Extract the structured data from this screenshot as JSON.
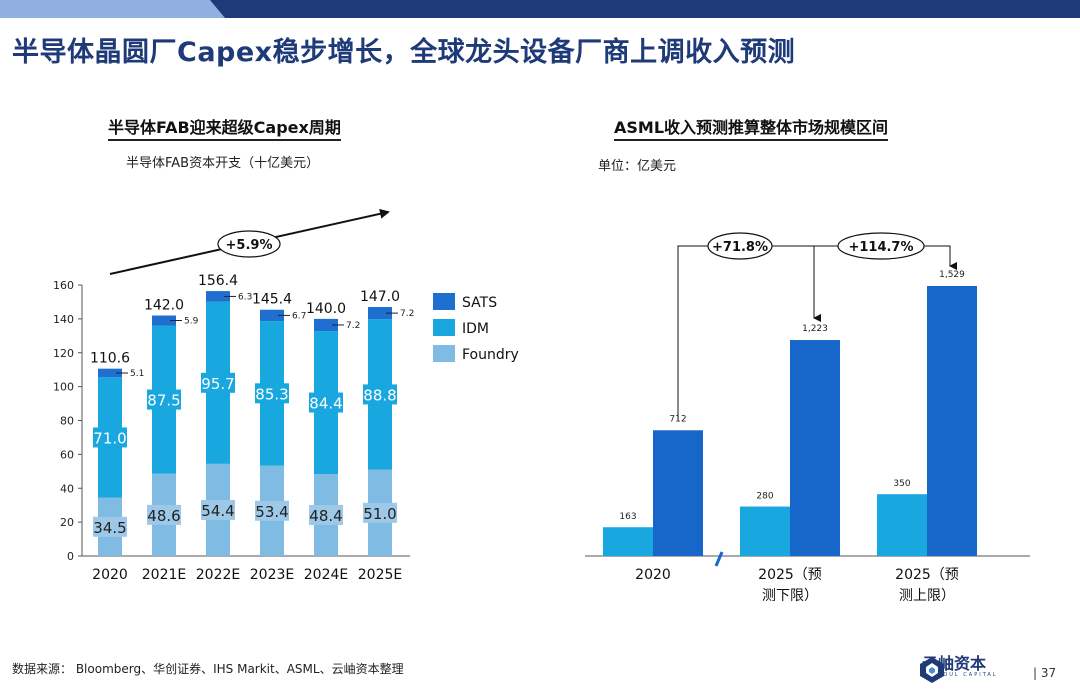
{
  "slide_title": "半导体晶圆厂Capex稳步增长，全球龙头设备厂商上调收入预测",
  "footer": {
    "source": "数据来源：  Bloomberg、华创证券、IHS Markit、ASML、云岫资本整理",
    "page_number": "| 37",
    "logo_text": "云岫资本",
    "logo_subtext": "WINSOUL CAPITAL"
  },
  "colors": {
    "title": "#1f3a78",
    "sats": "#1f6fd1",
    "idm": "#19a7e0",
    "foundry": "#7fbbe3",
    "asml_low": "#19a7e0",
    "asml_high": "#1667c9"
  },
  "chart_data": [
    {
      "type": "bar",
      "stacked": true,
      "title": "半导体FAB迎来超级Capex周期",
      "subtitle": "半导体FAB资本开支（十亿美元）",
      "categories": [
        "2020",
        "2021E",
        "2022E",
        "2023E",
        "2024E",
        "2025E"
      ],
      "series": [
        {
          "name": "Foundry",
          "values": [
            34.5,
            48.6,
            54.4,
            53.4,
            48.4,
            51.0
          ]
        },
        {
          "name": "IDM",
          "values": [
            71.0,
            87.5,
            95.7,
            85.3,
            84.4,
            88.8
          ]
        },
        {
          "name": "SATS",
          "values": [
            5.1,
            5.9,
            6.3,
            6.7,
            7.2,
            7.2
          ]
        }
      ],
      "totals": [
        "110.6",
        "142.0",
        "156.4",
        "145.4",
        "140.0",
        "147.0"
      ],
      "foundry_labels": [
        "34.5",
        "48.6",
        "54.4",
        "53.4",
        "48.4",
        "51.0"
      ],
      "idm_labels": [
        "71.0",
        "87.5",
        "95.7",
        "85.3",
        "84.4",
        "88.8"
      ],
      "sats_labels": [
        "5.1",
        "5.9",
        "6.3",
        "6.7",
        "7.2",
        "7.2"
      ],
      "legend_order": [
        "SATS",
        "IDM",
        "Foundry"
      ],
      "legend_position": "right",
      "ylim": [
        0,
        160
      ],
      "yticks": [
        "0",
        "20",
        "40",
        "60",
        "80",
        "100",
        "120",
        "140",
        "160"
      ],
      "annotation": "+5.9%",
      "grid": false
    },
    {
      "type": "bar",
      "title": "ASML收入预测推算整体市场规模区间",
      "subtitle": "单位：亿美元",
      "categories": [
        "2020",
        "2025（预测下限）",
        "2025（预测上限）"
      ],
      "category_lines": [
        [
          "2020"
        ],
        [
          "2025（预",
          "测下限）"
        ],
        [
          "2025（预",
          "测上限）"
        ]
      ],
      "series": [
        {
          "values": [
            163,
            280,
            350
          ]
        },
        {
          "values": [
            712,
            1223,
            1529
          ]
        }
      ],
      "value_labels_low": [
        "163",
        "280",
        "350"
      ],
      "value_labels_high": [
        "712",
        "1,223",
        "1,529"
      ],
      "annotations": [
        "+71.8%",
        "+114.7%"
      ],
      "ylim": [
        0,
        1650
      ],
      "grid": false
    }
  ]
}
